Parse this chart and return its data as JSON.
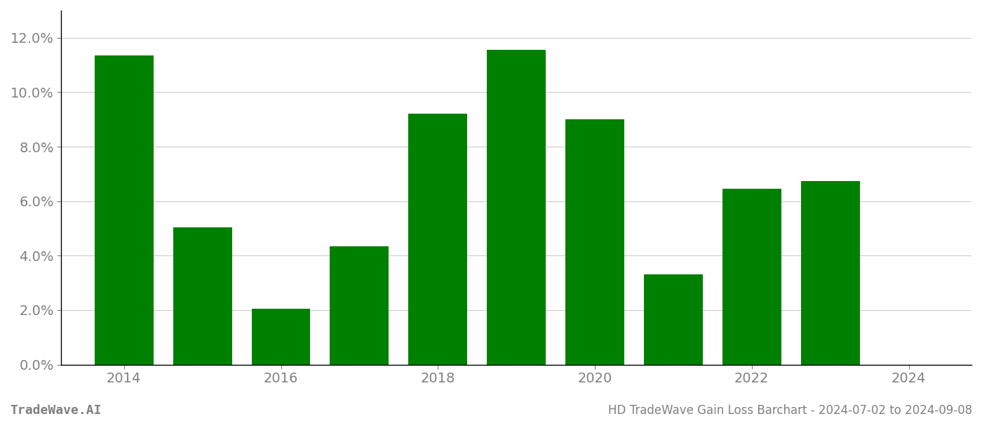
{
  "years": [
    2014,
    2015,
    2016,
    2017,
    2018,
    2019,
    2020,
    2021,
    2022,
    2023
  ],
  "values": [
    0.1135,
    0.0505,
    0.0205,
    0.0435,
    0.092,
    0.1155,
    0.09,
    0.033,
    0.0645,
    0.0675
  ],
  "bar_color": "#008000",
  "background_color": "#ffffff",
  "grid_color": "#cccccc",
  "axis_color": "#808080",
  "spine_color": "#000000",
  "title_text": "HD TradeWave Gain Loss Barchart - 2024-07-02 to 2024-09-08",
  "watermark_text": "TradeWave.AI",
  "ylim": [
    0,
    0.13
  ],
  "yticks": [
    0.0,
    0.02,
    0.04,
    0.06,
    0.08,
    0.1,
    0.12
  ],
  "xticks": [
    2014,
    2016,
    2018,
    2020,
    2022,
    2024
  ],
  "bar_width": 0.75,
  "tick_fontsize": 14,
  "watermark_fontsize": 13,
  "footer_fontsize": 12,
  "xlim": [
    2013.2,
    2024.8
  ]
}
